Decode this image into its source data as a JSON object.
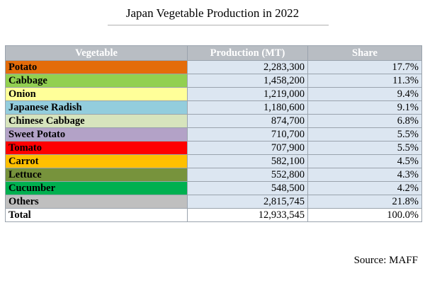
{
  "title": "Japan Vegetable Production in 2022",
  "source": "Source: MAFF",
  "colors": {
    "header_bg": "#b8bdc3",
    "value_cell_bg": "#dce6f1"
  },
  "chart_data": {
    "type": "table",
    "title": "Japan Vegetable Production in 2022",
    "columns": [
      "Vegetable",
      "Production (MT)",
      "Share"
    ],
    "rows": [
      {
        "vegetable": "Potato",
        "production": "2,283,300",
        "share": "17.7%",
        "color": "#e46c0a"
      },
      {
        "vegetable": "Cabbage",
        "production": "1,458,200",
        "share": "11.3%",
        "color": "#92d050"
      },
      {
        "vegetable": "Onion",
        "production": "1,219,000",
        "share": "9.4%",
        "color": "#ffff99"
      },
      {
        "vegetable": "Japanese Radish",
        "production": "1,180,600",
        "share": "9.1%",
        "color": "#93cddd"
      },
      {
        "vegetable": "Chinese Cabbage",
        "production": "874,700",
        "share": "6.8%",
        "color": "#d7e4bd"
      },
      {
        "vegetable": "Sweet Potato",
        "production": "710,700",
        "share": "5.5%",
        "color": "#b3a2c7"
      },
      {
        "vegetable": "Tomato",
        "production": "707,900",
        "share": "5.5%",
        "color": "#ff0000"
      },
      {
        "vegetable": "Carrot",
        "production": "582,100",
        "share": "4.5%",
        "color": "#ffc000"
      },
      {
        "vegetable": "Lettuce",
        "production": "552,800",
        "share": "4.3%",
        "color": "#77933c"
      },
      {
        "vegetable": "Cucumber",
        "production": "548,500",
        "share": "4.2%",
        "color": "#00b050"
      },
      {
        "vegetable": "Others",
        "production": "2,815,745",
        "share": "21.8%",
        "color": "#bfbfbf"
      }
    ],
    "total": {
      "vegetable": "Total",
      "production": "12,933,545",
      "share": "100.0%",
      "color": "#ffffff"
    }
  }
}
